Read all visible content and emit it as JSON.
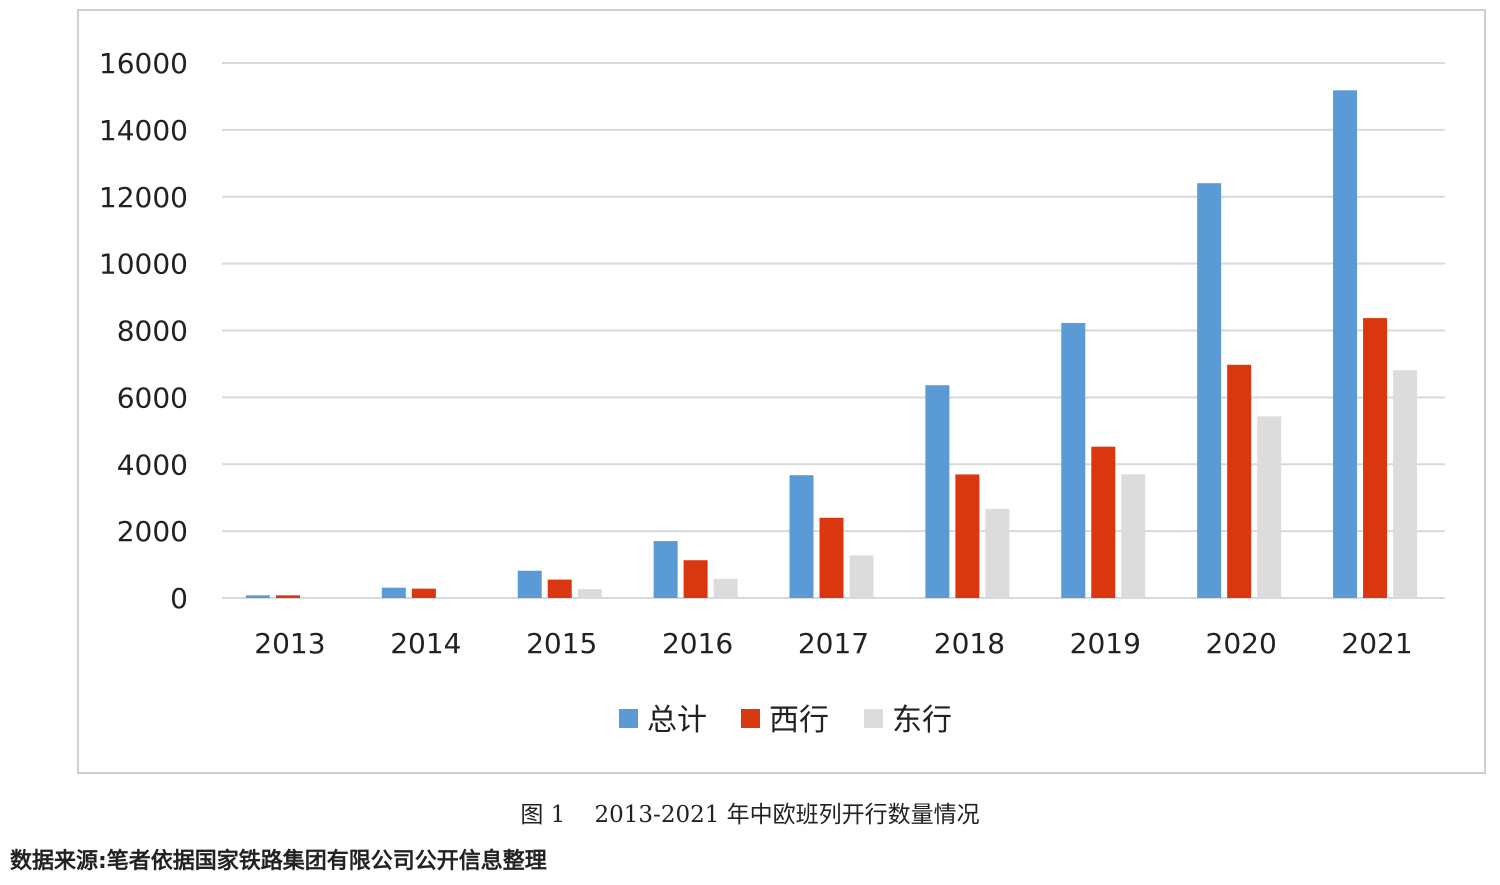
{
  "chart_data": {
    "type": "bar",
    "categories": [
      "2013",
      "2014",
      "2015",
      "2016",
      "2017",
      "2018",
      "2019",
      "2020",
      "2021"
    ],
    "series": [
      {
        "name": "总计",
        "values": [
          80,
          308,
          815,
          1702,
          3673,
          6363,
          8225,
          12406,
          15183
        ]
      },
      {
        "name": "西行",
        "values": [
          80,
          280,
          550,
          1130,
          2399,
          3696,
          4525,
          6975,
          8371
        ]
      },
      {
        "name": "东行",
        "values": [
          0,
          28,
          265,
          572,
          1274,
          2667,
          3700,
          5431,
          6812
        ]
      }
    ],
    "ylim": [
      0,
      16000
    ],
    "yticks": [
      "16000",
      "14000",
      "12000",
      "10000",
      "8000",
      "6000",
      "4000",
      "2000",
      "0"
    ],
    "grid": true,
    "legend": "bottom",
    "colors": [
      "#5b9bd5",
      "#d9370f",
      "#dcdcdc"
    ],
    "gridColor": "#d9d9d9"
  },
  "caption": {
    "figure_no": "图 1",
    "title": "2013-2021 年中欧班列开行数量情况"
  },
  "source_note": "数据来源:笔者依据国家铁路集团有限公司公开信息整理"
}
